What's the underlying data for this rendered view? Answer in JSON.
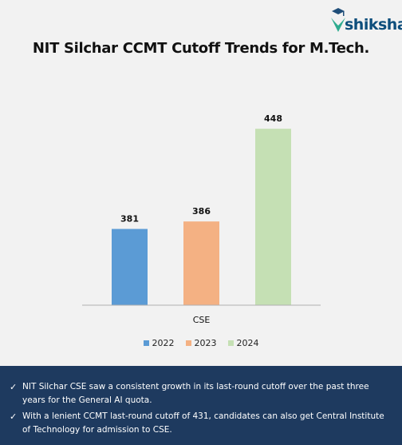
{
  "brand": {
    "name": "shiksha"
  },
  "chart_data": {
    "type": "bar",
    "title": "NIT Silchar CCMT Cutoff Trends for M.Tech.",
    "categories": [
      "CSE"
    ],
    "series": [
      {
        "name": "2022",
        "values": [
          381
        ],
        "color": "#5b9bd5"
      },
      {
        "name": "2023",
        "values": [
          386
        ],
        "color": "#f4b183"
      },
      {
        "name": "2024",
        "values": [
          448
        ],
        "color": "#c5e0b4"
      }
    ],
    "ylim": [
      330,
      470
    ],
    "grid": false,
    "legend": "bottom",
    "data_labels": true
  },
  "notes": [
    "NIT Silchar CSE saw a consistent growth in its last-round cutoff over the past three years for the General AI quota.",
    "With a lenient CCMT last-round cutoff of 431, candidates can also get Central Institute of Technology for admission to CSE."
  ],
  "icons": {
    "check": "✓"
  }
}
